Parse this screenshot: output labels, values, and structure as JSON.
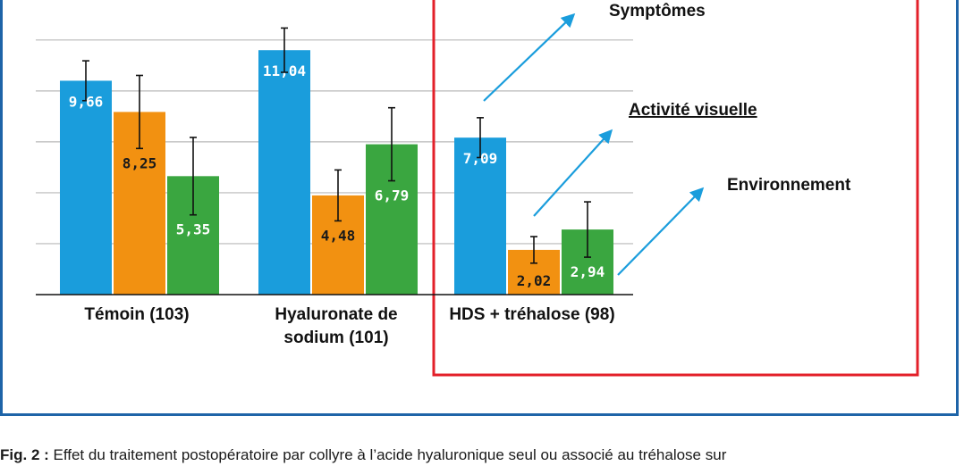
{
  "chart_data": {
    "type": "bar",
    "categories": [
      "Témoin (103)",
      [
        "Hyaluronate de",
        "sodium (101)"
      ],
      "HDS + tréhalose (98)"
    ],
    "series": [
      {
        "name": "Symptômes",
        "color": "#1a9ddc",
        "values": [
          9.66,
          11.04,
          7.09
        ],
        "errors": [
          0.9,
          1.0,
          0.9
        ]
      },
      {
        "name": "Activité visuelle",
        "color": "#f29111",
        "values": [
          8.25,
          4.48,
          2.02
        ],
        "errors": [
          1.65,
          1.15,
          0.6
        ]
      },
      {
        "name": "Environnement",
        "color": "#3aa640",
        "values": [
          5.35,
          6.79,
          2.94
        ],
        "errors": [
          1.75,
          1.65,
          1.25
        ]
      }
    ],
    "value_labels": [
      [
        "9,66",
        "8,25",
        "5,35"
      ],
      [
        "11,04",
        "4,48",
        "6,79"
      ],
      [
        "7,09",
        "2,02",
        "2,94"
      ]
    ],
    "ylim": [
      0,
      12
    ],
    "grid": true,
    "highlight_group": "HDS + tréhalose (98)",
    "annotations": [
      "Symptômes",
      "Activité visuelle",
      "Environnement"
    ]
  },
  "caption": {
    "prefix": "Fig. 2 :",
    "text": " Effet du traitement postopératoire par collyre à l’acide hyaluronique seul ou associé au tréhalose sur"
  }
}
